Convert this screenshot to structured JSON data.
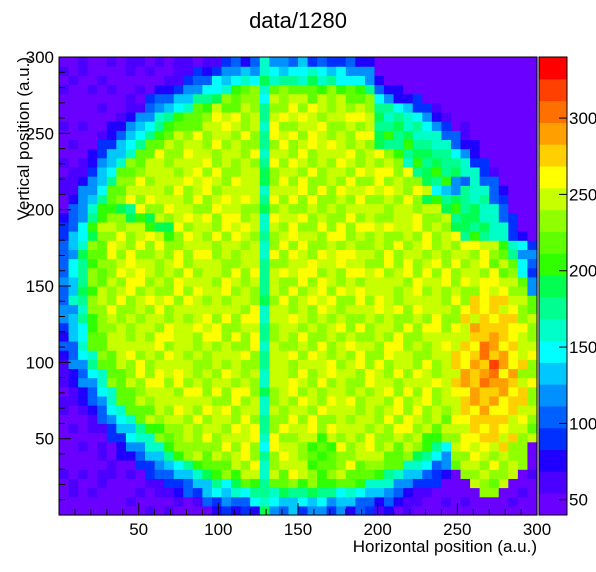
{
  "chart_data": {
    "type": "heatmap",
    "title": "data/1280",
    "xlabel": "Horizontal position (a.u.)",
    "ylabel": "Vertical position (a.u.)",
    "xlim": [
      0,
      300
    ],
    "ylim": [
      0,
      300
    ],
    "x_ticks": [
      50,
      100,
      150,
      200,
      250,
      300
    ],
    "y_ticks": [
      50,
      100,
      150,
      200,
      250,
      300
    ],
    "z_ticks": [
      50,
      100,
      150,
      200,
      250,
      300
    ],
    "z_tick_labels": [
      "50",
      "100",
      "150",
      "200",
      "250",
      "300"
    ],
    "zlim": [
      40,
      340
    ],
    "grid": false,
    "colormap": [
      "#6a00ff",
      "#4b00ff",
      "#1f00ff",
      "#0030ff",
      "#0060ff",
      "#0090ff",
      "#00c8ff",
      "#00ffff",
      "#00ffc8",
      "#00ff90",
      "#00ff50",
      "#30ff00",
      "#60ff00",
      "#90ff00",
      "#c8ff00",
      "#ffff00",
      "#ffd000",
      "#ffa000",
      "#ff7000",
      "#ff4000",
      "#ff0000"
    ],
    "features": {
      "detector_circle": {
        "center": [
          150,
          150
        ],
        "radius": 160
      },
      "vertical_stripe": {
        "x": [
          125,
          131
        ],
        "value": 170
      },
      "hot_region": {
        "center": [
          270,
          95
        ],
        "value": 305
      },
      "edge_value": 45,
      "interior_value": 245
    }
  }
}
